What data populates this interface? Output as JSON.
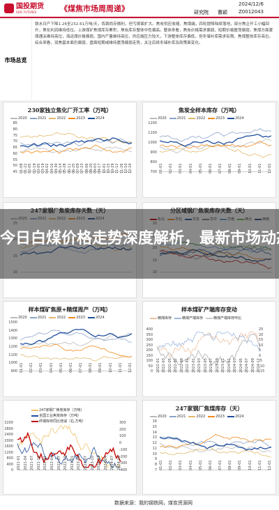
{
  "header": {
    "logo_cn": "国投期货",
    "logo_en": "SDIC FUTURES",
    "report_title": "《煤焦市场周周递》",
    "date": "2024/12/6",
    "dept": "研究院",
    "author": "曹颖",
    "code": "Z0012043"
  },
  "summary": {
    "label": "市场总览",
    "text": "铁水日产下降1.26至232.61万吨/天，炼钢尚存微利，但亏损面扩大。焦炭供应收缩，焦煤端，四轮提降陆续落地，部分焦企开工小幅回升，焦化利润维持低位。上游煤矿焦煤库存累积，焦炭库存整体中性偏高。整体来看，焦炭价格需求偏弱，短期价格震荡偏弱，焦煤方面蒙煤通关维持高位，海运煤价格偏弱，国内产量维持高位，供应端压力较大，下游整体库存偏低，但冬储补库需求有限，焦煤整体库存高位。综合来看，双焦基本面仍偏弱，盘面短期或维持震荡偏弱走势，关注后续冬储补库及政策面变化。"
  },
  "headline": "今日白煤价格走势深度解析，最新市场动态一",
  "colors": {
    "s2020": "#b9b9b9",
    "s2021": "#8aa2c8",
    "s2022": "#e0b86a",
    "s2023": "#f08a1e",
    "s2024": "#1f4e9c",
    "brand": "#c8102e"
  },
  "charts": {
    "c1": {
      "title": "230家独立焦化厂开工率（万吨）",
      "series_names": [
        "2020",
        "2021",
        "2022",
        "2023",
        "2024"
      ],
      "yticks": [
        "85",
        "80",
        "75",
        "70",
        "65",
        "60",
        "55",
        "50",
        "45"
      ],
      "xticks": [
        "01-08",
        "01-22",
        "02-05",
        "02-19",
        "03-05",
        "03-19",
        "04-02",
        "04-16",
        "04-30",
        "05-14",
        "05-28",
        "06-11",
        "06-25",
        "07-09",
        "07-23",
        "08-06",
        "08-20",
        "09-03",
        "09-17",
        "10-01",
        "10-15",
        "10-29",
        "11-12",
        "11-26",
        "12-10",
        "12-24"
      ]
    },
    "c2": {
      "title": "焦炭全样本库存（万吨）",
      "series_names": [
        "2020",
        "2021",
        "2022",
        "2023",
        "2024"
      ],
      "yticks": [
        "1200",
        "1100",
        "1000",
        "900",
        "800",
        "700"
      ],
      "xticks": [
        "01-01",
        "02-01",
        "03-01",
        "04-01",
        "05-01",
        "06-01",
        "07-01",
        "08-01",
        "09-01",
        "10-01",
        "11-01",
        "12-01"
      ]
    },
    "c3": {
      "title": "247家钢厂焦炭库存天数（天）",
      "series_names": [
        "2020",
        "2021",
        "2022",
        "2023",
        "2024"
      ],
      "yticks": [
        "25",
        "20",
        "15",
        "10"
      ]
    },
    "c4": {
      "title": "分区域钢厂焦炭库存天数（天）",
      "series_names": [
        "东北",
        "华北",
        "华东",
        "华中",
        "华南",
        "西北",
        "西南"
      ],
      "yticks": [
        "30",
        "25",
        "20",
        "15",
        "10"
      ]
    },
    "c5": {
      "title": "样本煤矿焦原+精煤周产（万吨）",
      "series_names": [
        "2020",
        "2021",
        "2022",
        "2023",
        "2024"
      ],
      "yticks": [
        "1500",
        "1400",
        "1300",
        "1200",
        "1100",
        "1000",
        "900"
      ],
      "xticks": [
        "01-01",
        "02-01",
        "03-01",
        "04-01",
        "05-01",
        "06-01",
        "07-01",
        "08-01",
        "09-01",
        "10-01",
        "11-01",
        "12-01"
      ]
    },
    "c6": {
      "title": "样本煤矿产端库存变动",
      "series_names": [
        "精煤库存",
        "精煤产端库存",
        "精煤产端库存环比"
      ],
      "yticks_left": [
        "400",
        "350",
        "300",
        "250",
        "200",
        "150",
        "100",
        "50",
        "0"
      ],
      "yticks_right": [
        "25",
        "20",
        "15",
        "10",
        "5",
        "0",
        "-5",
        "-10",
        "-15"
      ],
      "xticks": [
        "2022-01",
        "2022-03",
        "2022-05",
        "2022-07",
        "2022-09",
        "2022-11",
        "2023-01",
        "2023-03",
        "2023-05",
        "2023-07",
        "2023-09",
        "2023-11",
        "2024-01",
        "2024-03",
        "2024-05",
        "2024-07",
        "2024-09",
        "2024-11"
      ]
    },
    "c7": {
      "title": "",
      "series_names": [
        "247家钢厂焦炭库存（万吨）",
        "全国工业焦炭库存（万吨）",
        "终端库存同比增减（右,万吨）"
      ],
      "yticks_left": [
        "3200",
        "2800",
        "2400",
        "2000",
        "1600",
        "1200",
        "800",
        "400",
        "0"
      ],
      "yticks_right": [
        "300",
        "200",
        "100",
        "0",
        "-100",
        "-200",
        "-300",
        "-400"
      ],
      "xticks": [
        "2021-01",
        "2021-04",
        "2021-07",
        "2021-10",
        "2022-01",
        "2022-04",
        "2022-07",
        "2022-10",
        "2023-01",
        "2023-04",
        "2023-07",
        "2023-10",
        "2024-01",
        "2024-04",
        "2024-07",
        "2024-10"
      ]
    },
    "c8": {
      "title": "247家钢厂焦煤库存（天）",
      "series_names": [
        "2020",
        "2021",
        "2022",
        "2023",
        "2024"
      ],
      "yticks": [
        "16",
        "15",
        "14",
        "13",
        "12",
        "11",
        "10",
        "9",
        "8",
        "7"
      ],
      "xticks": [
        "01-01",
        "02-01",
        "03-01",
        "04-01",
        "05-01",
        "06-01",
        "07-01",
        "08-01",
        "09-01",
        "10-01",
        "11-01",
        "12-01"
      ]
    }
  },
  "footer": {
    "source": "数据来源：我的钢铁网，煤炭资源网"
  }
}
